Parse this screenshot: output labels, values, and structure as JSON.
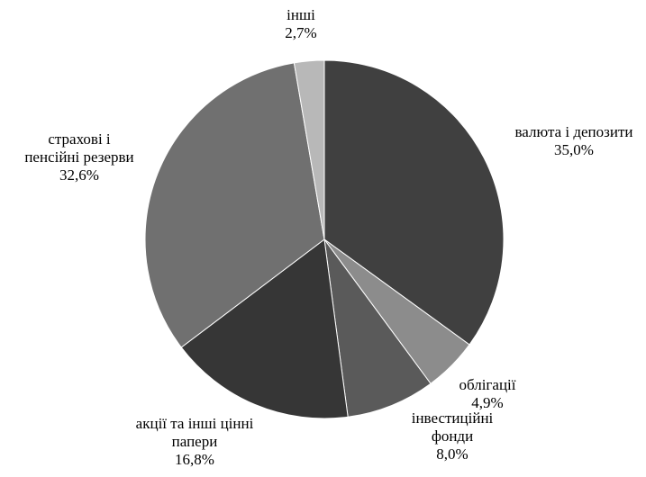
{
  "chart_data": {
    "type": "pie",
    "title": "",
    "unit": "%",
    "start_angle_deg": 0,
    "direction": "clockwise",
    "legend": "none",
    "slices": [
      {
        "category": "валюта і депозити",
        "label_lines": [
          "валюта і депозити"
        ],
        "value": 35.0,
        "value_label": "35,0%",
        "color": "#404040"
      },
      {
        "category": "облігації",
        "label_lines": [
          "облігації"
        ],
        "value": 4.9,
        "value_label": "4,9%",
        "color": "#8c8c8c"
      },
      {
        "category": "інвестиційні фонди",
        "label_lines": [
          "інвестиційні",
          "фонди"
        ],
        "value": 8.0,
        "value_label": "8,0%",
        "color": "#5a5a5a"
      },
      {
        "category": "акції та інші цінні папери",
        "label_lines": [
          "акції та інші цінні",
          "папери"
        ],
        "value": 16.8,
        "value_label": "16,8%",
        "color": "#363636"
      },
      {
        "category": "страхові і пенсійні резерви",
        "label_lines": [
          "страхові і",
          "пенсійні резерви"
        ],
        "value": 32.6,
        "value_label": "32,6%",
        "color": "#707070"
      },
      {
        "category": "інші",
        "label_lines": [
          "інші"
        ],
        "value": 2.7,
        "value_label": "2,7%",
        "color": "#b8b8b8"
      }
    ]
  }
}
